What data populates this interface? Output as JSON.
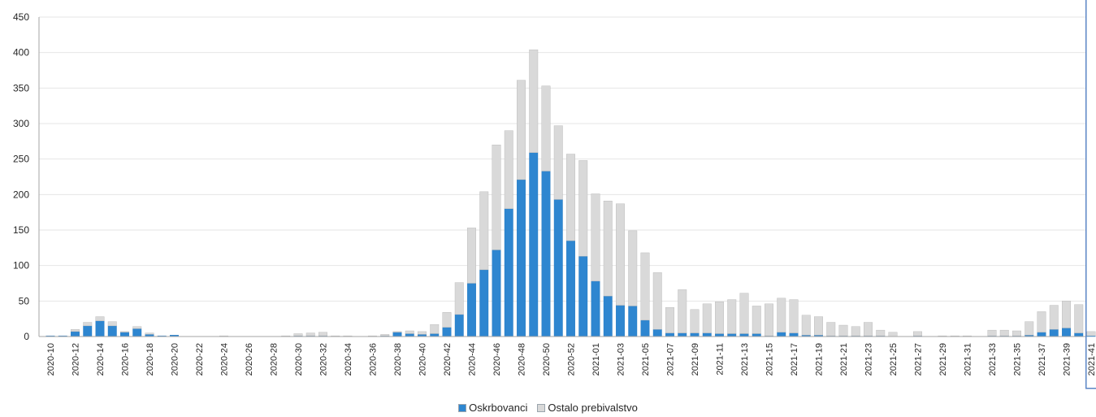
{
  "chart_data": {
    "type": "bar",
    "stacked": true,
    "ylim": [
      0,
      450
    ],
    "y_ticks": [
      "0",
      "50",
      "100",
      "150",
      "200",
      "250",
      "300",
      "350",
      "400",
      "450"
    ],
    "grid": true,
    "legend_position": "bottom",
    "categories": [
      "2020-10",
      "2020-11",
      "2020-12",
      "2020-13",
      "2020-14",
      "2020-15",
      "2020-16",
      "2020-17",
      "2020-18",
      "2020-19",
      "2020-20",
      "2020-21",
      "2020-22",
      "2020-23",
      "2020-24",
      "2020-25",
      "2020-26",
      "2020-27",
      "2020-28",
      "2020-29",
      "2020-30",
      "2020-31",
      "2020-32",
      "2020-33",
      "2020-34",
      "2020-35",
      "2020-36",
      "2020-37",
      "2020-38",
      "2020-39",
      "2020-40",
      "2020-41",
      "2020-42",
      "2020-43",
      "2020-44",
      "2020-45",
      "2020-46",
      "2020-47",
      "2020-48",
      "2020-49",
      "2020-50",
      "2020-51",
      "2020-52",
      "2020-53",
      "2021-01",
      "2021-02",
      "2021-03",
      "2021-04",
      "2021-05",
      "2021-06",
      "2021-07",
      "2021-08",
      "2021-09",
      "2021-10",
      "2021-11",
      "2021-12",
      "2021-13",
      "2021-14",
      "2021-15",
      "2021-16",
      "2021-17",
      "2021-18",
      "2021-19",
      "2021-20",
      "2021-21",
      "2021-22",
      "2021-23",
      "2021-24",
      "2021-25",
      "2021-26",
      "2021-27",
      "2021-28",
      "2021-29",
      "2021-30",
      "2021-31",
      "2021-32",
      "2021-33",
      "2021-34",
      "2021-35",
      "2021-36",
      "2021-37",
      "2021-38",
      "2021-39",
      "2021-40",
      "2021-41"
    ],
    "x_tick_labels": [
      "2020-10",
      "2020-12",
      "2020-14",
      "2020-16",
      "2020-18",
      "2020-20",
      "2020-22",
      "2020-24",
      "2020-26",
      "2020-28",
      "2020-30",
      "2020-32",
      "2020-34",
      "2020-36",
      "2020-38",
      "2020-40",
      "2020-42",
      "2020-44",
      "2020-46",
      "2020-48",
      "2020-50",
      "2020-52",
      "2021-01",
      "2021-03",
      "2021-05",
      "2021-07",
      "2021-09",
      "2021-11",
      "2021-13",
      "2021-15",
      "2021-17",
      "2021-19",
      "2021-21",
      "2021-23",
      "2021-25",
      "2021-27",
      "2021-29",
      "2021-31",
      "2021-33",
      "2021-35",
      "2021-37",
      "2021-39",
      "2021-41"
    ],
    "series": [
      {
        "name": "Oskrbovanci",
        "color": "#2e86d0",
        "values": [
          1,
          1,
          7,
          15,
          22,
          15,
          6,
          11,
          3,
          1,
          2,
          0,
          0,
          0,
          0,
          0,
          0,
          0,
          0,
          0,
          1,
          1,
          1,
          0,
          0,
          0,
          0,
          1,
          6,
          4,
          3,
          4,
          13,
          31,
          75,
          94,
          122,
          180,
          221,
          259,
          233,
          193,
          135,
          113,
          78,
          57,
          44,
          43,
          23,
          10,
          5,
          5,
          5,
          5,
          4,
          4,
          4,
          4,
          1,
          6,
          5,
          2,
          2,
          1,
          1,
          1,
          1,
          1,
          0,
          0,
          1,
          0,
          0,
          0,
          0,
          0,
          1,
          1,
          1,
          2,
          6,
          10,
          12,
          5,
          1
        ]
      },
      {
        "name": "Ostalo prebivalstvo",
        "color": "#d9d9d9",
        "values": [
          0,
          0,
          3,
          5,
          6,
          6,
          1,
          3,
          2,
          0,
          0,
          0,
          0,
          0,
          1,
          0,
          0,
          0,
          0,
          1,
          3,
          4,
          5,
          1,
          1,
          0,
          1,
          2,
          1,
          4,
          4,
          13,
          21,
          45,
          78,
          110,
          148,
          110,
          140,
          145,
          120,
          104,
          122,
          135,
          123,
          134,
          143,
          106,
          95,
          80,
          36,
          61,
          33,
          41,
          45,
          48,
          57,
          39,
          45,
          48,
          47,
          28,
          26,
          19,
          15,
          13,
          19,
          8,
          6,
          0,
          6,
          0,
          1,
          1,
          1,
          0,
          8,
          8,
          7,
          19,
          29,
          34,
          38,
          40,
          6
        ]
      }
    ]
  }
}
